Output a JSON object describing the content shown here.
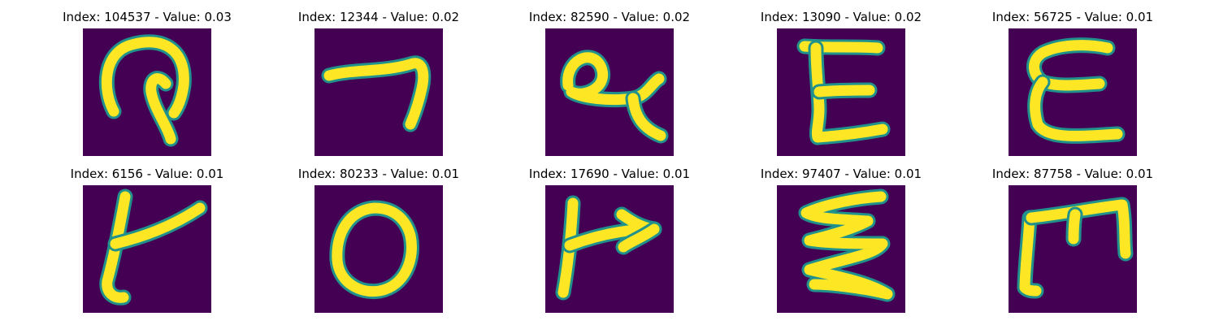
{
  "colors": {
    "background": "#440154",
    "stroke": "#fde725",
    "edge": "#21918c"
  },
  "grid": {
    "rows": 2,
    "cols": 5
  },
  "samples": [
    {
      "title": "Index: 104537 - Value: 0.03",
      "depicts": "handwritten glyph resembling a hooked loop"
    },
    {
      "title": "Index: 12344 - Value: 0.02",
      "depicts": "handwritten glyph resembling a seven"
    },
    {
      "title": "Index: 82590 - Value: 0.02",
      "depicts": "handwritten glyph resembling a looped alpha"
    },
    {
      "title": "Index: 13090 - Value: 0.02",
      "depicts": "handwritten capital E"
    },
    {
      "title": "Index: 56725 - Value: 0.01",
      "depicts": "handwritten capital E"
    },
    {
      "title": "Index: 6156 - Value: 0.01",
      "depicts": "handwritten glyph resembling an upside-down F"
    },
    {
      "title": "Index: 80233 - Value: 0.01",
      "depicts": "handwritten letter O"
    },
    {
      "title": "Index: 17690 - Value: 0.01",
      "depicts": "handwritten glyph resembling a flag"
    },
    {
      "title": "Index: 97407 - Value: 0.01",
      "depicts": "handwritten glyph resembling a zigzag E"
    },
    {
      "title": "Index: 87758 - Value: 0.01",
      "depicts": "handwritten glyph resembling a rotated E"
    }
  ]
}
